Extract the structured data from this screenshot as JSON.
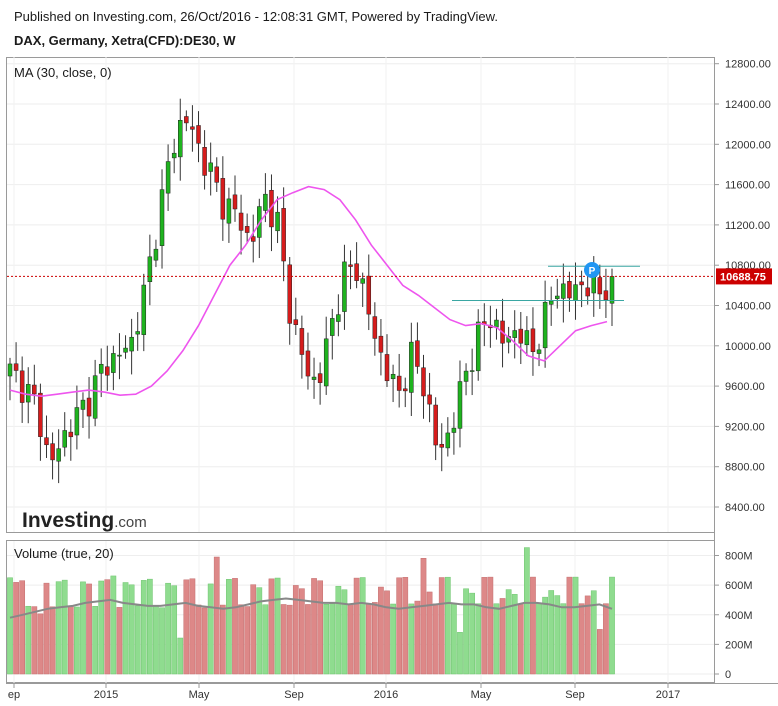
{
  "header": {
    "published": "Published on Investing.com, 26/Oct/2016 - 12:08:31 GMT, Powered by TradingView.",
    "symbol": "DAX, Germany, Xetra(CFD):DE30, W"
  },
  "price_pane": {
    "indicator_label": "MA (30, close, 0)",
    "last_price_label": "10688.75",
    "marker_label": "P",
    "watermark_brand": "Investing",
    "watermark_suffix": ".com"
  },
  "volume_pane": {
    "indicator_label": "Volume (true, 20)"
  },
  "x_axis_labels": [
    "ep",
    "2015",
    "May",
    "Sep",
    "2016",
    "May",
    "Sep",
    "2017"
  ],
  "colors": {
    "up": "#1fb31f",
    "down": "#d61c1c",
    "ma": "#ee55ee",
    "vol_up": "#8fdc8f",
    "vol_down": "#dd8888",
    "vol_ma": "#888888",
    "last_price": "#cc0000",
    "horizontal_lines": "#3aa7a3",
    "marker": "#2196f3"
  },
  "chart_data": [
    {
      "type": "candlestick",
      "title": "DAX, Germany, Xetra(CFD):DE30, W",
      "y_axis": {
        "min": 8200,
        "max": 12900,
        "ticks": [
          8400,
          8800,
          9200,
          9600,
          10000,
          10400,
          10800,
          11200,
          11600,
          12000,
          12400,
          12800
        ],
        "tick_labels": [
          "8400.00",
          "8800.00",
          "9200.00",
          "9600.00",
          "10000.00",
          "10400.00",
          "10800.00",
          "11200.00",
          "11600.00",
          "12000.00",
          "12400.00",
          "12800.00"
        ]
      },
      "last_price": 10688.75,
      "series": [
        {
          "name": "MA (30, close, 0)",
          "type": "line",
          "values": [
            9560,
            9520,
            9500,
            9520,
            9540,
            9560,
            9540,
            9510,
            9520,
            9600,
            9750,
            9950,
            10200,
            10500,
            10800,
            11000,
            11250,
            11450,
            11520,
            11580,
            11550,
            11450,
            11250,
            11000,
            10800,
            10600,
            10500,
            10380,
            10260,
            10200,
            10220,
            10180,
            10050,
            9900,
            9850,
            10000,
            10150,
            10200,
            10240
          ]
        }
      ],
      "horizontal_lines": [
        {
          "from": "2016-04",
          "to": "2016-10",
          "value": 10450
        },
        {
          "from": "2016-07",
          "to": "2016-10",
          "value": 10790
        }
      ]
    },
    {
      "type": "bar",
      "title": "Volume (true, 20)",
      "y_axis": {
        "min": 0,
        "max": 900,
        "ticks": [
          0,
          200,
          400,
          600,
          800
        ],
        "tick_labels": [
          "0",
          "200M",
          "400M",
          "600M",
          "800M"
        ]
      },
      "series": [
        {
          "name": "Volume (true, 20)",
          "type": "line",
          "values": [
            380,
            400,
            420,
            440,
            450,
            460,
            480,
            490,
            500,
            480,
            470,
            460,
            460,
            470,
            480,
            460,
            450,
            440,
            450,
            470,
            490,
            500,
            510,
            500,
            490,
            480,
            480,
            470,
            480,
            470,
            450,
            440,
            450,
            460,
            470,
            480,
            470,
            470,
            450,
            440,
            460,
            480,
            480,
            470,
            450,
            450,
            460,
            470,
            440
          ]
        }
      ]
    }
  ]
}
